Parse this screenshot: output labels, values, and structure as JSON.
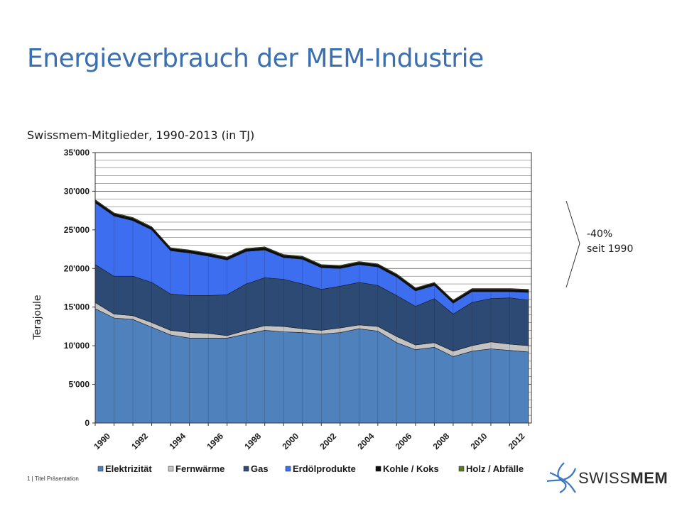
{
  "slide": {
    "title": "Energieverbrauch der MEM-Industrie",
    "footer": "1 | Titel Präsentation",
    "note_line1": "-40%",
    "note_line2": "seit 1990",
    "logo_light": "SWISS",
    "logo_bold": "MEM"
  },
  "colors": {
    "title": "#3a6fb0",
    "Elektrizität": "#4f81bd",
    "Fernwärme": "#c3c3c3",
    "Gas": "#2c4a74",
    "Erdölprodukte": "#3d6ef0",
    "Kohle / Koks": "#0d0d0d",
    "Holz / Abfälle": "#5c7a25",
    "logo_blue": "#3a78c3"
  },
  "chart_data": {
    "type": "area",
    "stacked": true,
    "title": "Swissmem-Mitglieder, 1990-2013 (in TJ)",
    "xlabel": "",
    "ylabel": "Terajoule",
    "ylim": [
      0,
      35000
    ],
    "yticks": [
      0,
      5000,
      10000,
      15000,
      20000,
      25000,
      30000,
      35000
    ],
    "ytick_labels": [
      "0",
      "5'000",
      "10'000",
      "15'000",
      "20'000",
      "25'000",
      "30'000",
      "35'000"
    ],
    "grid_step": 1000,
    "x": [
      1990,
      1991,
      1992,
      1993,
      1994,
      1995,
      1996,
      1997,
      1998,
      1999,
      2000,
      2001,
      2002,
      2003,
      2004,
      2005,
      2006,
      2007,
      2008,
      2009,
      2010,
      2011,
      2012,
      2013
    ],
    "xtick_labels": [
      "1990",
      "1992",
      "1994",
      "1996",
      "1998",
      "2000",
      "2002",
      "2004",
      "2006",
      "2008",
      "2010",
      "2012"
    ],
    "legend_position": "bottom",
    "series": [
      {
        "name": "Elektrizität",
        "values": [
          14800,
          13600,
          13400,
          12400,
          11400,
          11000,
          11000,
          11000,
          11500,
          12000,
          11800,
          11700,
          11500,
          11700,
          12200,
          11900,
          10400,
          9500,
          9800,
          8600,
          9300,
          9600,
          9400,
          9200
        ]
      },
      {
        "name": "Fernwärme",
        "values": [
          800,
          500,
          500,
          600,
          600,
          700,
          600,
          300,
          500,
          600,
          700,
          500,
          500,
          600,
          500,
          600,
          800,
          600,
          600,
          700,
          700,
          900,
          800,
          800
        ]
      },
      {
        "name": "Gas",
        "values": [
          4900,
          4900,
          5100,
          5200,
          4700,
          4800,
          4900,
          5300,
          6000,
          6200,
          6100,
          5800,
          5300,
          5400,
          5500,
          5300,
          5300,
          5000,
          5700,
          4800,
          5600,
          5600,
          6000,
          5900
        ]
      },
      {
        "name": "Erdölprodukte",
        "values": [
          8000,
          7800,
          7200,
          6800,
          5600,
          5500,
          5100,
          4500,
          4200,
          3600,
          2800,
          3200,
          2800,
          2300,
          2300,
          2400,
          2400,
          2000,
          1700,
          1400,
          1400,
          900,
          800,
          1000
        ]
      },
      {
        "name": "Kohle / Koks",
        "values": [
          300,
          300,
          300,
          300,
          300,
          300,
          300,
          300,
          300,
          300,
          300,
          300,
          300,
          300,
          300,
          300,
          300,
          300,
          300,
          300,
          300,
          300,
          300,
          300
        ]
      },
      {
        "name": "Holz / Abfälle",
        "values": [
          100,
          100,
          100,
          100,
          100,
          100,
          100,
          100,
          100,
          100,
          100,
          100,
          100,
          100,
          100,
          100,
          100,
          100,
          100,
          100,
          100,
          100,
          100,
          100
        ]
      }
    ]
  }
}
